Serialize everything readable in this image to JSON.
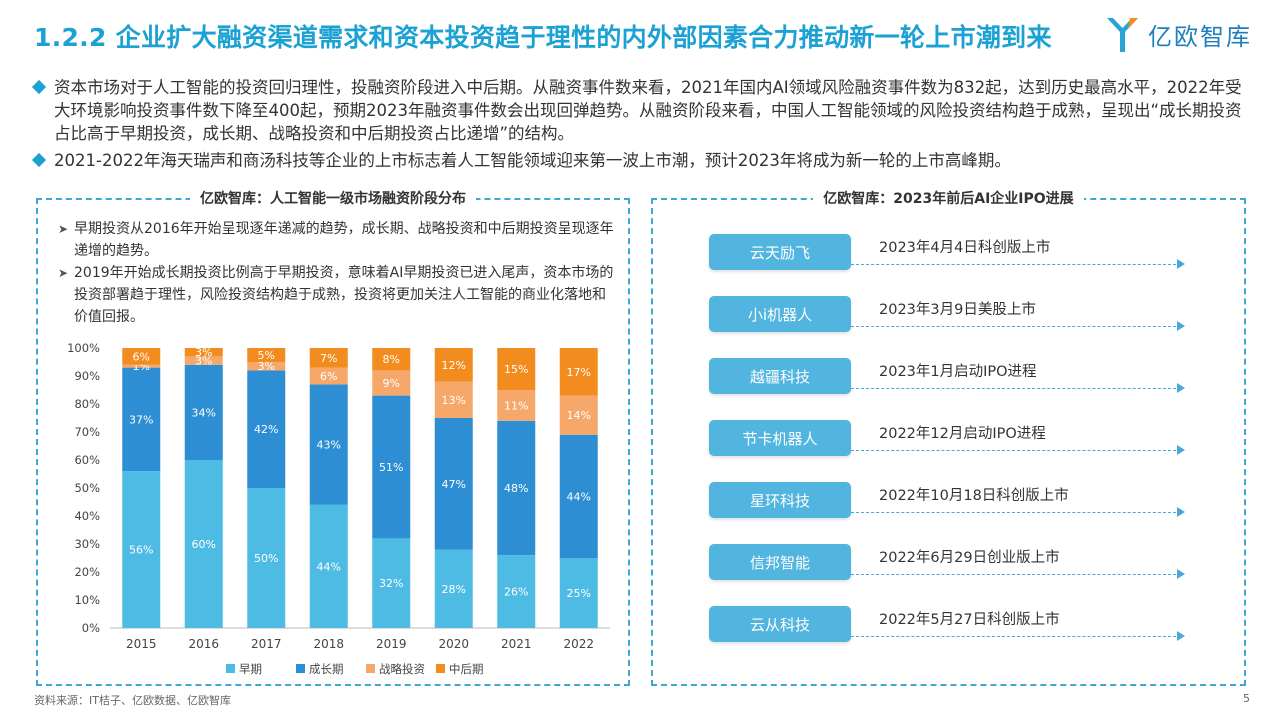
{
  "title": "1.2.2 企业扩大融资渠道需求和资本投资趋于理性的内外部因素合力推动新一轮上市潮到来",
  "logo": {
    "text": "亿欧智库",
    "icon": "yiou-logo-icon"
  },
  "bullets": [
    "资本市场对于人工智能的投资回归理性，投融资阶段进入中后期。从融资事件数来看，2021年国内AI领域风险融资事件数为832起，达到历史最高水平，2022年受大环境影响投资事件数下降至400起，预期2023年融资事件数会出现回弹趋势。从融资阶段来看，中国人工智能领域的风险投资结构趋于成熟，呈现出“成长期投资占比高于早期投资，成长期、战略投资和中后期投资占比递增”的结构。",
    "2021-2022年海天瑞声和商汤科技等企业的上市标志着人工智能领域迎来第一波上市潮，预计2023年将成为新一轮的上市高峰期。"
  ],
  "left_panel": {
    "title": "亿欧智库：人工智能一级市场融资阶段分布",
    "notes": [
      "早期投资从2016年开始呈现逐年递减的趋势，成长期、战略投资和中后期投资呈现逐年递增的趋势。",
      "2019年开始成长期投资比例高于早期投资，意味着AI早期投资已进入尾声，资本市场的投资部署趋于理性，风险投资结构趋于成熟，投资将更加关注人工智能的商业化落地和价值回报。"
    ]
  },
  "chart_data": {
    "type": "bar",
    "stacked": true,
    "categories": [
      "2015",
      "2016",
      "2017",
      "2018",
      "2019",
      "2020",
      "2021",
      "2022"
    ],
    "series": [
      {
        "name": "早期",
        "color": "#4DBBE3",
        "values": [
          56,
          60,
          50,
          44,
          32,
          28,
          26,
          25
        ]
      },
      {
        "name": "成长期",
        "color": "#2E8ED3",
        "values": [
          37,
          34,
          42,
          43,
          51,
          47,
          48,
          44
        ]
      },
      {
        "name": "战略投资",
        "color": "#F5A86A",
        "values": [
          1,
          3,
          3,
          6,
          9,
          13,
          11,
          14
        ]
      },
      {
        "name": "中后期",
        "color": "#F28C1E",
        "values": [
          6,
          3,
          5,
          7,
          8,
          12,
          15,
          17
        ]
      }
    ],
    "ylim": [
      0,
      100
    ],
    "yticks": [
      "0%",
      "10%",
      "20%",
      "30%",
      "40%",
      "50%",
      "60%",
      "70%",
      "80%",
      "90%",
      "100%"
    ],
    "legend_position": "bottom",
    "value_suffix": "%"
  },
  "right_panel": {
    "title": "亿欧智库：2023年前后AI企业IPO进展",
    "items": [
      {
        "company": "云天励飞",
        "event": "2023年4月4日科创版上市"
      },
      {
        "company": "小i机器人",
        "event": "2023年3月9日美股上市"
      },
      {
        "company": "越疆科技",
        "event": "2023年1月启动IPO进程"
      },
      {
        "company": "节卡机器人",
        "event": "2022年12月启动IPO进程"
      },
      {
        "company": "星环科技",
        "event": "2022年10月18日科创版上市"
      },
      {
        "company": "信邦智能",
        "event": "2022年6月29日创业版上市"
      },
      {
        "company": "云从科技",
        "event": "2022年5月27日科创版上市"
      }
    ]
  },
  "footer": {
    "source": "资料来源：IT桔子、亿欧数据、亿欧智库",
    "page": "5"
  }
}
